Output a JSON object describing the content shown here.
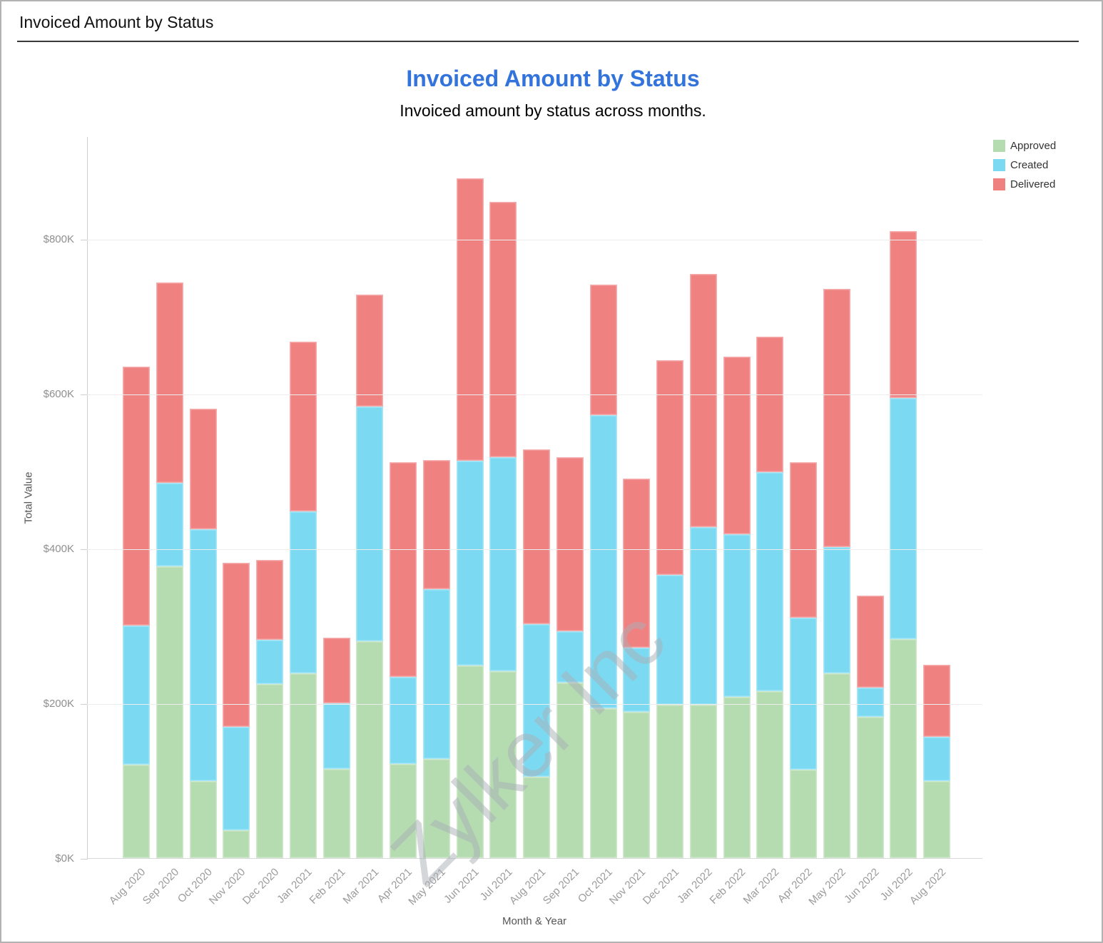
{
  "window": {
    "header_title": "Invoiced Amount by Status"
  },
  "chart_data": {
    "type": "bar",
    "stacked": true,
    "title": "Invoiced Amount by Status",
    "subtitle": "Invoiced amount by status across months.",
    "xlabel": "Month & Year",
    "ylabel": "Total Value",
    "watermark": "Zylker Inc",
    "grid": true,
    "legend_position": "top-right",
    "y_unit": "$K",
    "ylim": [
      0,
      933
    ],
    "y_ticks": [
      {
        "value": 0,
        "label": "$0K"
      },
      {
        "value": 200,
        "label": "$200K"
      },
      {
        "value": 400,
        "label": "$400K"
      },
      {
        "value": 600,
        "label": "$600K"
      },
      {
        "value": 800,
        "label": "$800K"
      }
    ],
    "categories": [
      "Aug 2020",
      "Sep 2020",
      "Oct 2020",
      "Nov 2020",
      "Dec 2020",
      "Jan 2021",
      "Feb 2021",
      "Mar 2021",
      "Apr 2021",
      "May 2021",
      "Jun 2021",
      "Jul 2021",
      "Aug 2021",
      "Sep 2021",
      "Oct 2021",
      "Nov 2021",
      "Dec 2021",
      "Jan 2022",
      "Feb 2022",
      "Mar 2022",
      "Apr 2022",
      "May 2022",
      "Jun 2022",
      "Jul 2022",
      "Aug 2022"
    ],
    "series": [
      {
        "name": "Approved",
        "color": "#b5dcb0",
        "values": [
          121,
          377,
          100,
          36,
          225,
          239,
          115,
          280,
          122,
          128,
          249,
          242,
          105,
          227,
          194,
          189,
          198,
          198,
          208,
          216,
          114,
          239,
          183,
          283,
          100
        ]
      },
      {
        "name": "Created",
        "color": "#7cd9f2",
        "values": [
          180,
          108,
          325,
          134,
          57,
          209,
          85,
          304,
          112,
          220,
          265,
          276,
          197,
          66,
          379,
          83,
          168,
          230,
          211,
          283,
          197,
          163,
          37,
          312,
          57
        ]
      },
      {
        "name": "Delivered",
        "color": "#f08181",
        "values": [
          334,
          259,
          156,
          212,
          103,
          220,
          85,
          144,
          278,
          167,
          365,
          330,
          226,
          225,
          168,
          219,
          278,
          327,
          229,
          175,
          201,
          334,
          119,
          215,
          93
        ]
      }
    ]
  }
}
